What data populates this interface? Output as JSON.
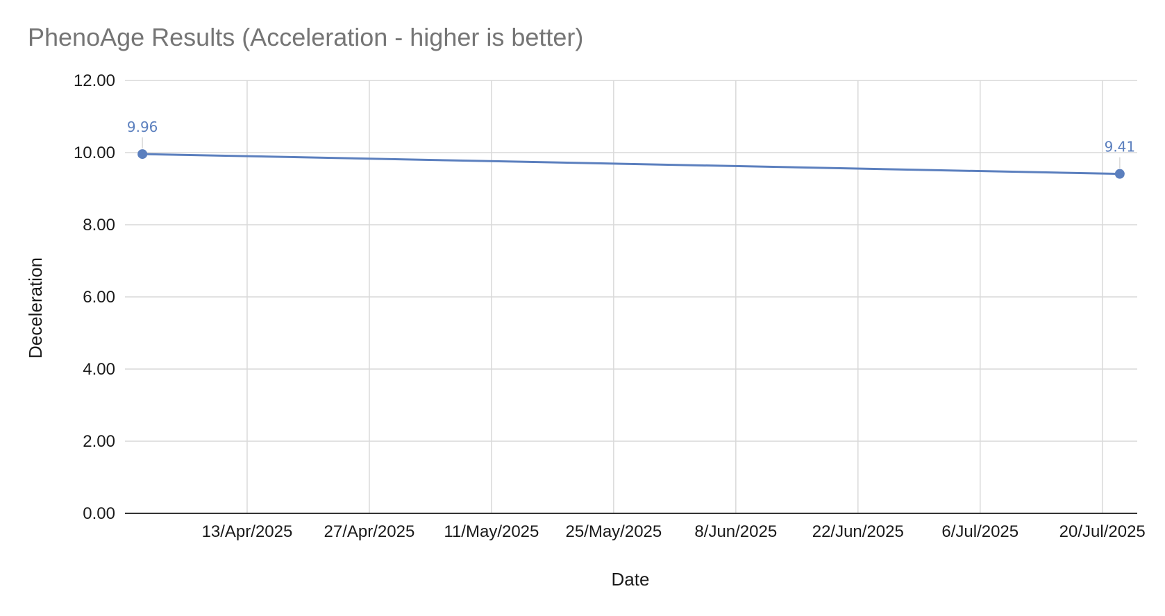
{
  "chart_data": {
    "type": "line",
    "title": "PhenoAge Results (Acceleration - higher is better)",
    "xlabel": "Date",
    "ylabel": "Deceleration",
    "ylim": [
      0,
      12
    ],
    "yticks": [
      "0.00",
      "2.00",
      "4.00",
      "6.00",
      "8.00",
      "10.00",
      "12.00"
    ],
    "xlim": [
      "2025-03-30",
      "2025-07-24"
    ],
    "xticks": [
      {
        "date": "2025-04-13",
        "label": "13/Apr/2025"
      },
      {
        "date": "2025-04-27",
        "label": "27/Apr/2025"
      },
      {
        "date": "2025-05-11",
        "label": "11/May/2025"
      },
      {
        "date": "2025-05-25",
        "label": "25/May/2025"
      },
      {
        "date": "2025-06-08",
        "label": "8/Jun/2025"
      },
      {
        "date": "2025-06-22",
        "label": "22/Jun/2025"
      },
      {
        "date": "2025-07-06",
        "label": "6/Jul/2025"
      },
      {
        "date": "2025-07-20",
        "label": "20/Jul/2025"
      }
    ],
    "grid": true,
    "legend": "none",
    "series": [
      {
        "points": [
          {
            "x": "2025-04-01",
            "y": 9.96,
            "label": "9.96"
          },
          {
            "x": "2025-07-22",
            "y": 9.41,
            "label": "9.41"
          }
        ],
        "color": "#5b7fbe"
      }
    ],
    "colors": {
      "title": "#757575",
      "grid": "#d9d9d9",
      "axis": "#333333",
      "text": "#1a1a1a"
    }
  }
}
